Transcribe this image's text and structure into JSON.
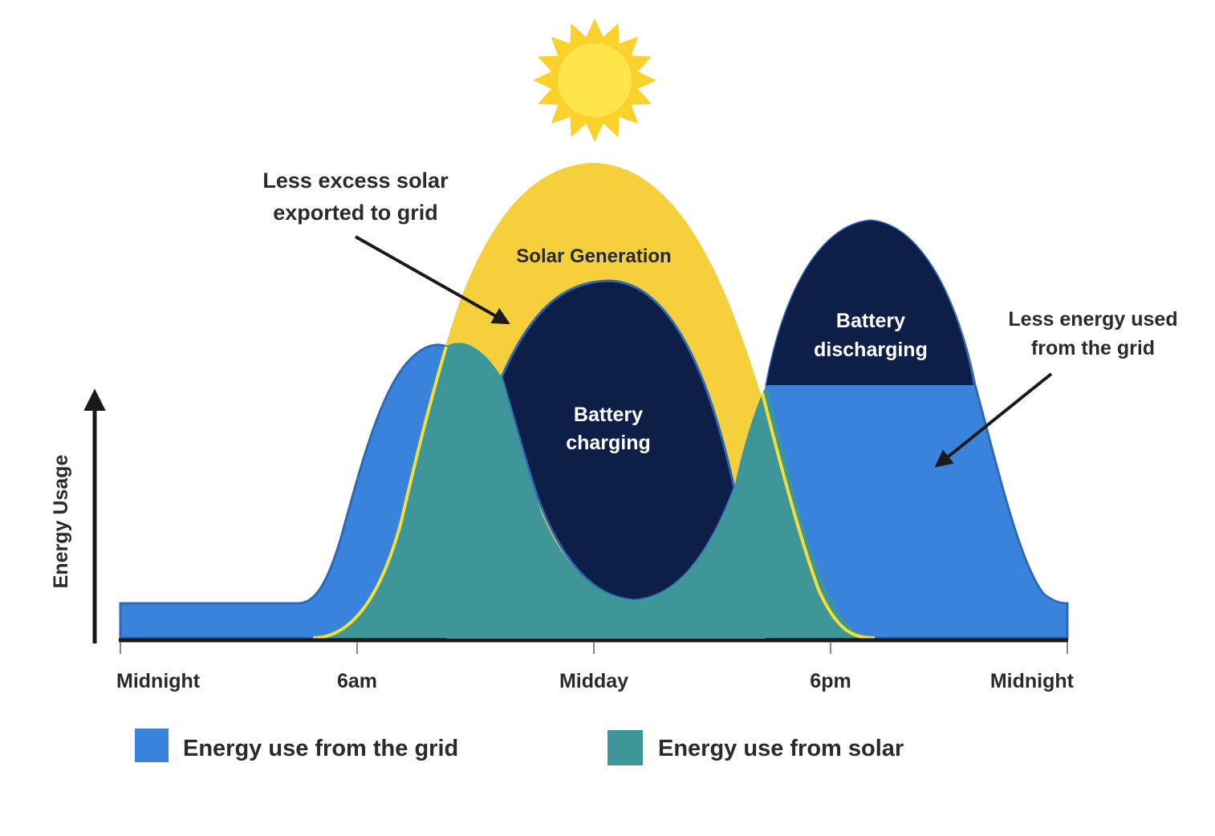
{
  "colors": {
    "solar": "#f6cf3c",
    "solar_edge": "#f1df3a",
    "grid": "#3a83dd",
    "grid_edge": "#2e69b8",
    "solar_use": "#3f9698",
    "battery": "#0d1f47",
    "axis": "#1a1a1a",
    "text": "#2a2a2a",
    "sun": "#fbd22c"
  },
  "icons": {
    "sun": "sun-icon"
  },
  "axis": {
    "y_label": "Energy Usage",
    "x_ticks": [
      "Midnight",
      "6am",
      "Midday",
      "6pm",
      "Midnight"
    ]
  },
  "regions": {
    "solar_generation": "Solar Generation",
    "battery_charging": [
      "Battery",
      "charging"
    ],
    "battery_discharging": [
      "Battery",
      "discharging"
    ]
  },
  "annotations": {
    "excess_solar": [
      "Less excess solar",
      "exported to grid"
    ],
    "less_grid": [
      "Less energy used",
      "from the grid"
    ]
  },
  "legend": [
    {
      "label": "Energy use from the grid",
      "color": "#3a83dd"
    },
    {
      "label": "Energy use from solar",
      "color": "#3f9698"
    }
  ]
}
